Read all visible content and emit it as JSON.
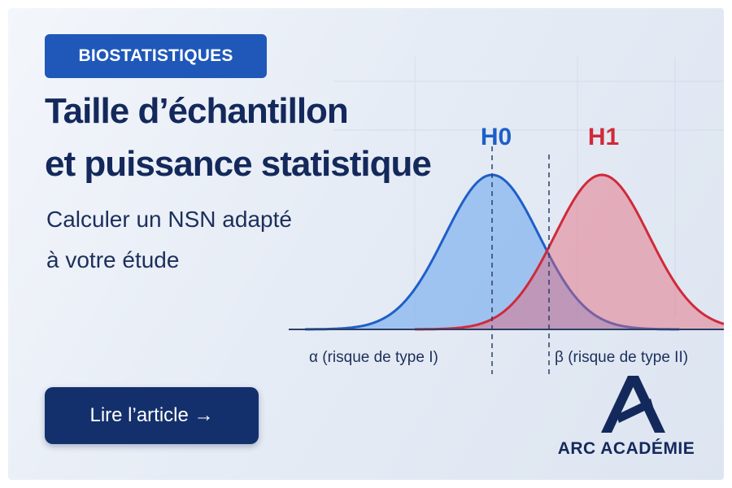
{
  "badge": "BIOSTATISTIQUES",
  "title": [
    "Taille d’échantillon",
    "et puissance statistique"
  ],
  "subtitle": [
    "Calculer un NSN adapté",
    "à votre étude"
  ],
  "illustration": {
    "h0_label": "H0",
    "h1_label": "H1",
    "alpha_label": "α (risque de type I)",
    "beta_label": "β (risque de type II)"
  },
  "button": "Lire l’article →",
  "brand": "ARC ACADÉMIE"
}
